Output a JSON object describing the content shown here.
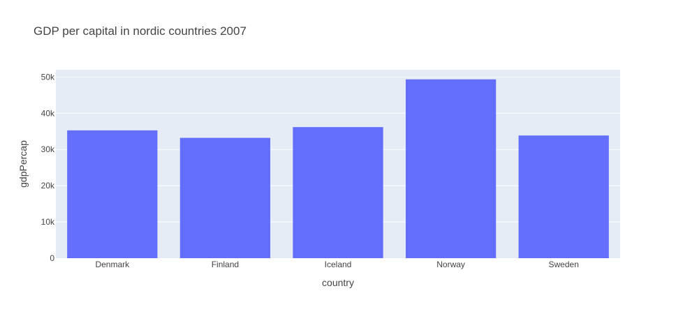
{
  "chart_data": {
    "type": "bar",
    "title": "GDP per capital in nordic countries 2007",
    "xlabel": "country",
    "ylabel": "gdpPercap",
    "categories": [
      "Denmark",
      "Finland",
      "Iceland",
      "Norway",
      "Sweden"
    ],
    "values": [
      35278,
      33207,
      36181,
      49357,
      33860
    ],
    "ylim": [
      0,
      52000
    ],
    "yticks": [
      0,
      10000,
      20000,
      30000,
      40000,
      50000
    ],
    "ytick_labels": [
      "0",
      "10k",
      "20k",
      "30k",
      "40k",
      "50k"
    ],
    "grid": true,
    "legend": "none",
    "colors": {
      "bar": "#636efa",
      "plot_background": "#e5ecf6",
      "grid": "#ffffff",
      "text": "#444444"
    }
  }
}
